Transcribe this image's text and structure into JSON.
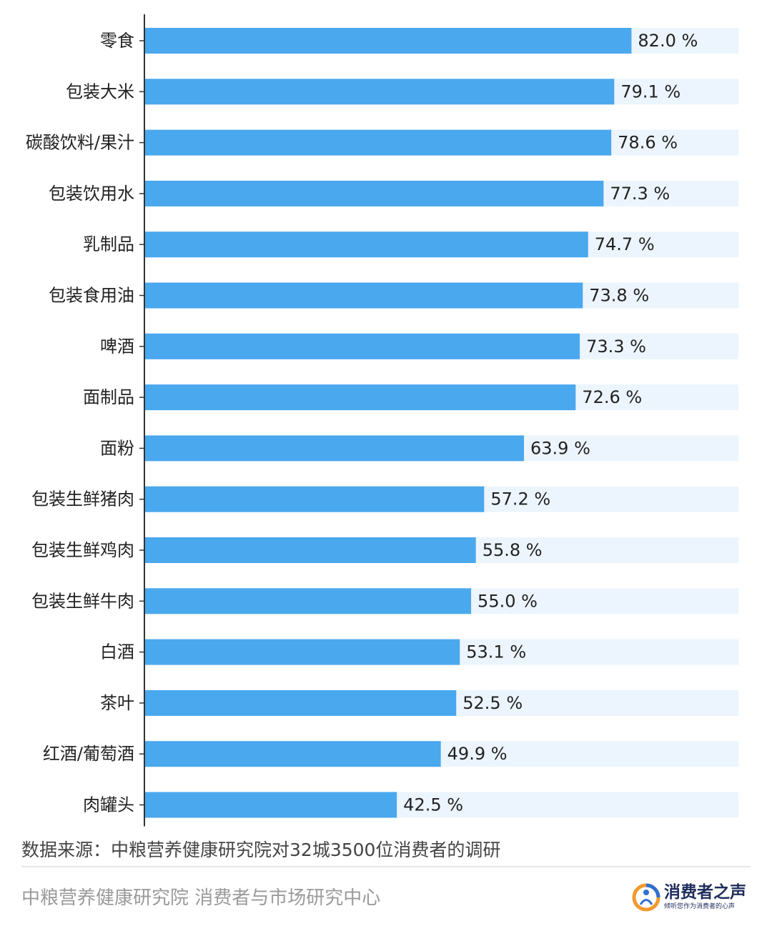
{
  "chart_data": {
    "type": "bar",
    "orientation": "horizontal",
    "categories": [
      "零食",
      "包装大米",
      "碳酸饮料/果汁",
      "包装饮用水",
      "乳制品",
      "包装食用油",
      "啤酒",
      "面制品",
      "面粉",
      "包装生鲜猪肉",
      "包装生鲜鸡肉",
      "包装生鲜牛肉",
      "白酒",
      "茶叶",
      "红酒/葡萄酒",
      "肉罐头"
    ],
    "values": [
      82.0,
      79.1,
      78.6,
      77.3,
      74.7,
      73.8,
      73.3,
      72.6,
      63.9,
      57.2,
      55.8,
      55.0,
      53.1,
      52.5,
      49.9,
      42.5
    ],
    "value_labels": [
      "82.0 %",
      "79.1 %",
      "78.6 %",
      "77.3 %",
      "74.7 %",
      "73.8 %",
      "73.3 %",
      "72.6 %",
      "63.9 %",
      "57.2 %",
      "55.8 %",
      "55.0 %",
      "53.1 %",
      "52.5 %",
      "49.9 %",
      "42.5 %"
    ],
    "unit": "%",
    "xlim": [
      0,
      100
    ],
    "grid": false,
    "legend": "none",
    "colors": {
      "bar": "#4aa8ee",
      "track": "#ecf5fd",
      "axis": "#333333",
      "label": "#222222"
    }
  },
  "source_note": "数据来源：中粮营养健康研究院对32城3500位消费者的调研",
  "footer": {
    "organization": "中粮营养健康研究院 消费者与市场研究中心",
    "logo": {
      "icon": "consumer-voice-logo",
      "title": "消费者之声",
      "slogan": "倾听您作为消费者的心声"
    }
  }
}
